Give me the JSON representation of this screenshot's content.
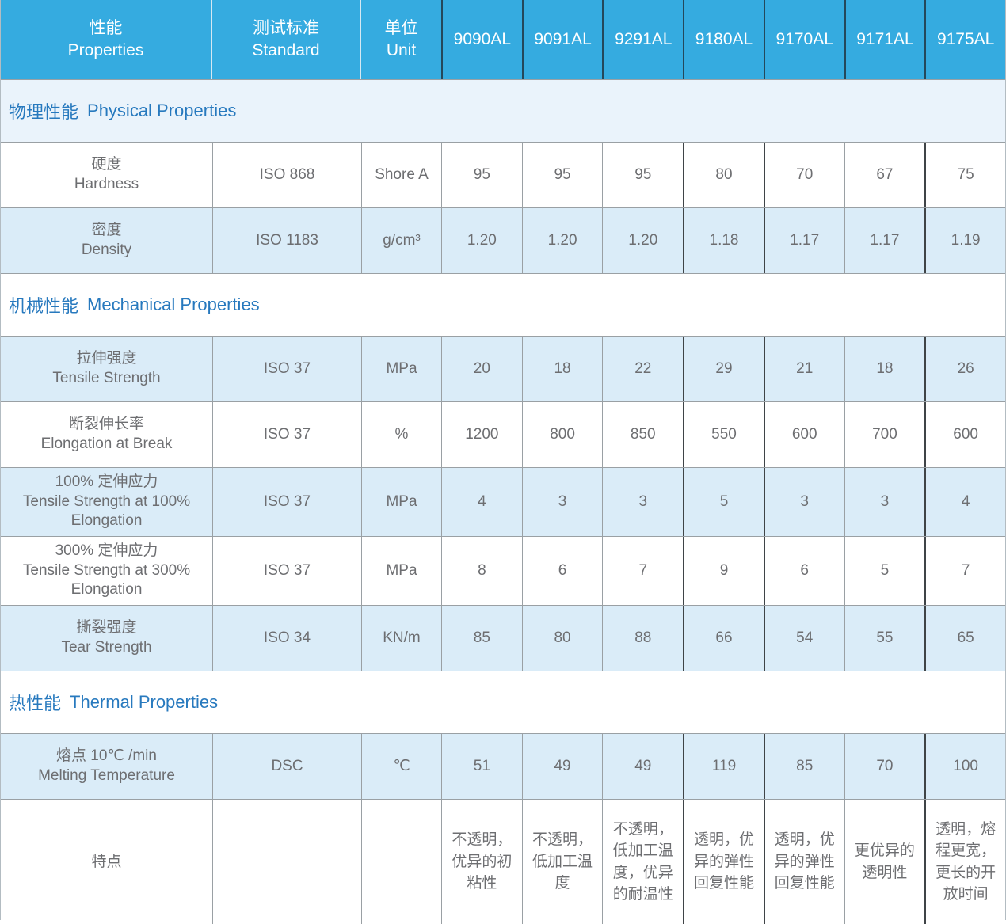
{
  "colors": {
    "header_bg": "#35abe0",
    "header_text": "#ffffff",
    "shaded_row_bg": "#daecf8",
    "section_band_bg": "#eaf3fb",
    "section_text": "#2779be",
    "body_text": "#6d6e71",
    "grid_border": "#9aa0a4",
    "group_separator_border": "#3f4447"
  },
  "table": {
    "header": {
      "property_zh": "性能",
      "property_en": "Properties",
      "standard_zh": "测试标准",
      "standard_en": "Standard",
      "unit_zh": "单位",
      "unit_en": "Unit",
      "grades": [
        "9090AL",
        "9091AL",
        "9291AL",
        "9180AL",
        "9170AL",
        "9171AL",
        "9175AL"
      ]
    },
    "dark_separator_grade_indexes": [
      3,
      4,
      6
    ],
    "rows": [
      {
        "type": "section",
        "zh": "物理性能",
        "en": "Physical Properties",
        "shaded": true
      },
      {
        "type": "data",
        "zh": "硬度",
        "en": "Hardness",
        "standard": "ISO 868",
        "unit": "Shore A",
        "values": [
          "95",
          "95",
          "95",
          "80",
          "70",
          "67",
          "75"
        ],
        "shaded": false
      },
      {
        "type": "data",
        "zh": "密度",
        "en": "Density",
        "standard": "ISO 1183",
        "unit": "g/cm³",
        "values": [
          "1.20",
          "1.20",
          "1.20",
          "1.18",
          "1.17",
          "1.17",
          "1.19"
        ],
        "shaded": true
      },
      {
        "type": "section",
        "zh": "机械性能",
        "en": "Mechanical Properties",
        "shaded": false
      },
      {
        "type": "data",
        "zh": "拉伸强度",
        "en": "Tensile Strength",
        "standard": "ISO 37",
        "unit": "MPa",
        "values": [
          "20",
          "18",
          "22",
          "29",
          "21",
          "18",
          "26"
        ],
        "shaded": true
      },
      {
        "type": "data",
        "zh": "断裂伸长率",
        "en": "Elongation at Break",
        "standard": "ISO 37",
        "unit": "%",
        "values": [
          "1200",
          "800",
          "850",
          "550",
          "600",
          "700",
          "600"
        ],
        "shaded": false
      },
      {
        "type": "data",
        "zh": "100% 定伸应力",
        "en": "Tensile Strength at 100% Elongation",
        "standard": "ISO 37",
        "unit": "MPa",
        "values": [
          "4",
          "3",
          "3",
          "5",
          "3",
          "3",
          "4"
        ],
        "shaded": true
      },
      {
        "type": "data",
        "zh": "300% 定伸应力",
        "en": "Tensile Strength at 300% Elongation",
        "standard": "ISO 37",
        "unit": "MPa",
        "values": [
          "8",
          "6",
          "7",
          "9",
          "6",
          "5",
          "7"
        ],
        "shaded": false
      },
      {
        "type": "data",
        "zh": "撕裂强度",
        "en": "Tear Strength",
        "standard": "ISO 34",
        "unit": "KN/m",
        "values": [
          "85",
          "80",
          "88",
          "66",
          "54",
          "55",
          "65"
        ],
        "shaded": true
      },
      {
        "type": "section",
        "zh": "热性能",
        "en": "Thermal Properties",
        "shaded": false
      },
      {
        "type": "data",
        "zh": "熔点 10℃ /min",
        "en": "Melting Temperature",
        "standard": "DSC",
        "unit": "℃",
        "values": [
          "51",
          "49",
          "49",
          "119",
          "85",
          "70",
          "100"
        ],
        "shaded": true
      },
      {
        "type": "data",
        "zh": "特点",
        "en": "",
        "standard": "",
        "unit": "",
        "values": [
          "不透明，优异的初粘性",
          "不透明，低加工温度",
          "不透明，低加工温度，优异的耐温性",
          "透明，优异的弹性回复性能",
          "透明，优异的弹性回复性能",
          "更优异的透明性",
          "透明，熔程更宽，更长的开放时间"
        ],
        "shaded": false,
        "tall": true
      }
    ]
  }
}
